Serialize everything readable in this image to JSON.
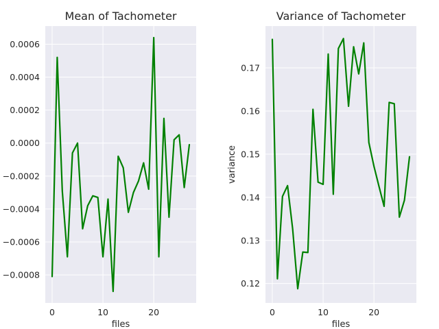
{
  "chart_data": [
    {
      "type": "line",
      "title": "Mean of Tachometer",
      "xlabel": "files",
      "ylabel": "",
      "xlim": [
        -1.35,
        28.35
      ],
      "ylim": [
        -0.00097,
        0.00071
      ],
      "xticks": [
        0,
        10,
        20
      ],
      "yticks": [
        -0.0008,
        -0.0006,
        -0.0004,
        -0.0002,
        0.0,
        0.0002,
        0.0004,
        0.0006
      ],
      "ytick_labels": [
        "−0.0008",
        "−0.0006",
        "−0.0004",
        "−0.0002",
        "0.0000",
        "0.0002",
        "0.0004",
        "0.0006"
      ],
      "grid": true,
      "color": "#008000",
      "x": [
        0,
        1,
        2,
        3,
        4,
        5,
        6,
        7,
        8,
        9,
        10,
        11,
        12,
        13,
        14,
        15,
        16,
        17,
        18,
        19,
        20,
        21,
        22,
        23,
        24,
        25,
        26,
        27
      ],
      "y": [
        -0.00081,
        0.00052,
        -0.00029,
        -0.00069,
        -6e-05,
        0.0,
        -0.00052,
        -0.00038,
        -0.00032,
        -0.00033,
        -0.00069,
        -0.00034,
        -0.0009,
        -8e-05,
        -0.00015,
        -0.00042,
        -0.0003,
        -0.00023,
        -0.00012,
        -0.00028,
        0.00064,
        -0.00069,
        0.00015,
        -0.00045,
        2e-05,
        5e-05,
        -0.00027,
        -1e-05
      ]
    },
    {
      "type": "line",
      "title": "Variance of Tachometer",
      "xlabel": "files",
      "ylabel": "variance",
      "xlim": [
        -1.35,
        28.35
      ],
      "ylim": [
        0.1155,
        0.1797
      ],
      "xticks": [
        0,
        10,
        20
      ],
      "yticks": [
        0.12,
        0.13,
        0.14,
        0.15,
        0.16,
        0.17
      ],
      "ytick_labels": [
        "0.12",
        "0.13",
        "0.14",
        "0.15",
        "0.16",
        "0.17"
      ],
      "grid": true,
      "color": "#008000",
      "x": [
        0,
        1,
        2,
        3,
        4,
        5,
        6,
        7,
        8,
        9,
        10,
        11,
        12,
        13,
        14,
        15,
        16,
        17,
        18,
        19,
        20,
        21,
        22,
        23,
        24,
        25,
        26,
        27
      ],
      "y": [
        0.1766,
        0.1211,
        0.1402,
        0.1427,
        0.1327,
        0.1188,
        0.1273,
        0.1272,
        0.1604,
        0.1435,
        0.143,
        0.1732,
        0.1407,
        0.1745,
        0.1768,
        0.1611,
        0.1749,
        0.1686,
        0.1758,
        0.1527,
        0.1472,
        0.1425,
        0.1379,
        0.162,
        0.1617,
        0.1354,
        0.1393,
        0.1494
      ]
    }
  ]
}
